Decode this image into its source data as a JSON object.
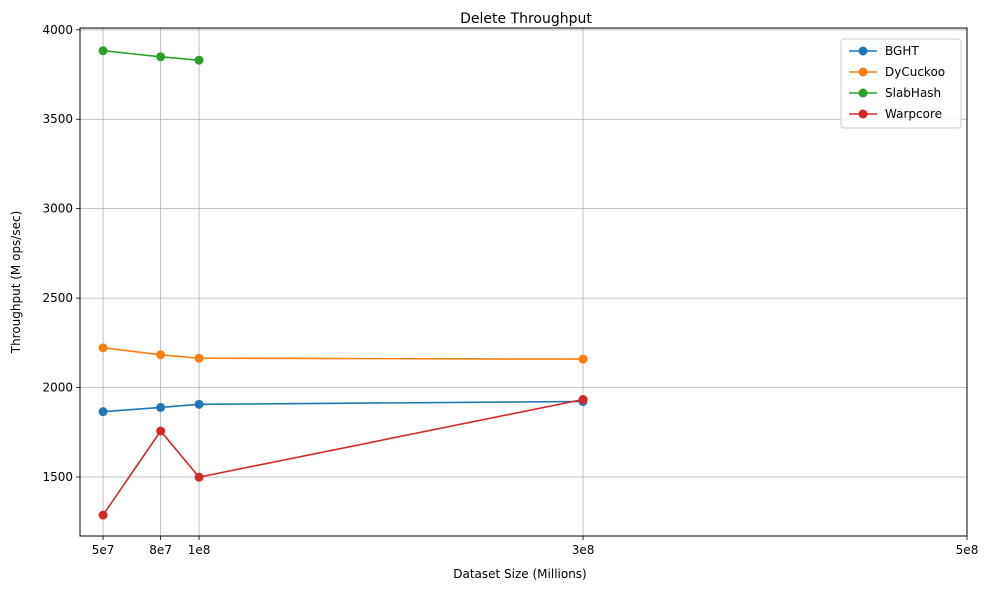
{
  "chart_data": {
    "type": "line",
    "title": "Delete Throughput",
    "xlabel": "Dataset Size (Millions)",
    "ylabel": "Throughput (M ops/sec)",
    "xlim": [
      38000000,
      500000000
    ],
    "ylim": [
      1170,
      4010
    ],
    "xticks": [
      50000000,
      80000000,
      100000000,
      300000000,
      500000000
    ],
    "xtick_labels": [
      "5e7",
      "8e7",
      "1e8",
      "3e8",
      "5e8"
    ],
    "yticks": [
      1500,
      2000,
      2500,
      3000,
      3500,
      4000
    ],
    "grid": true,
    "legend_position": "top-right",
    "series": [
      {
        "name": "BGHT",
        "color": "#1f77b4",
        "x": [
          50000000,
          80000000,
          100000000,
          300000000
        ],
        "y": [
          1865,
          1889,
          1906,
          1922
        ]
      },
      {
        "name": "DyCuckoo",
        "color": "#ff7f0e",
        "x": [
          50000000,
          80000000,
          100000000,
          300000000
        ],
        "y": [
          2222,
          2183,
          2164,
          2159
        ]
      },
      {
        "name": "SlabHash",
        "color": "#2ca02c",
        "x": [
          50000000,
          80000000,
          100000000
        ],
        "y": [
          3883,
          3849,
          3830
        ]
      },
      {
        "name": "Warpcore",
        "color": "#d62728",
        "x": [
          50000000,
          80000000,
          100000000,
          300000000
        ],
        "y": [
          1287,
          1757,
          1499,
          1933
        ]
      }
    ]
  }
}
